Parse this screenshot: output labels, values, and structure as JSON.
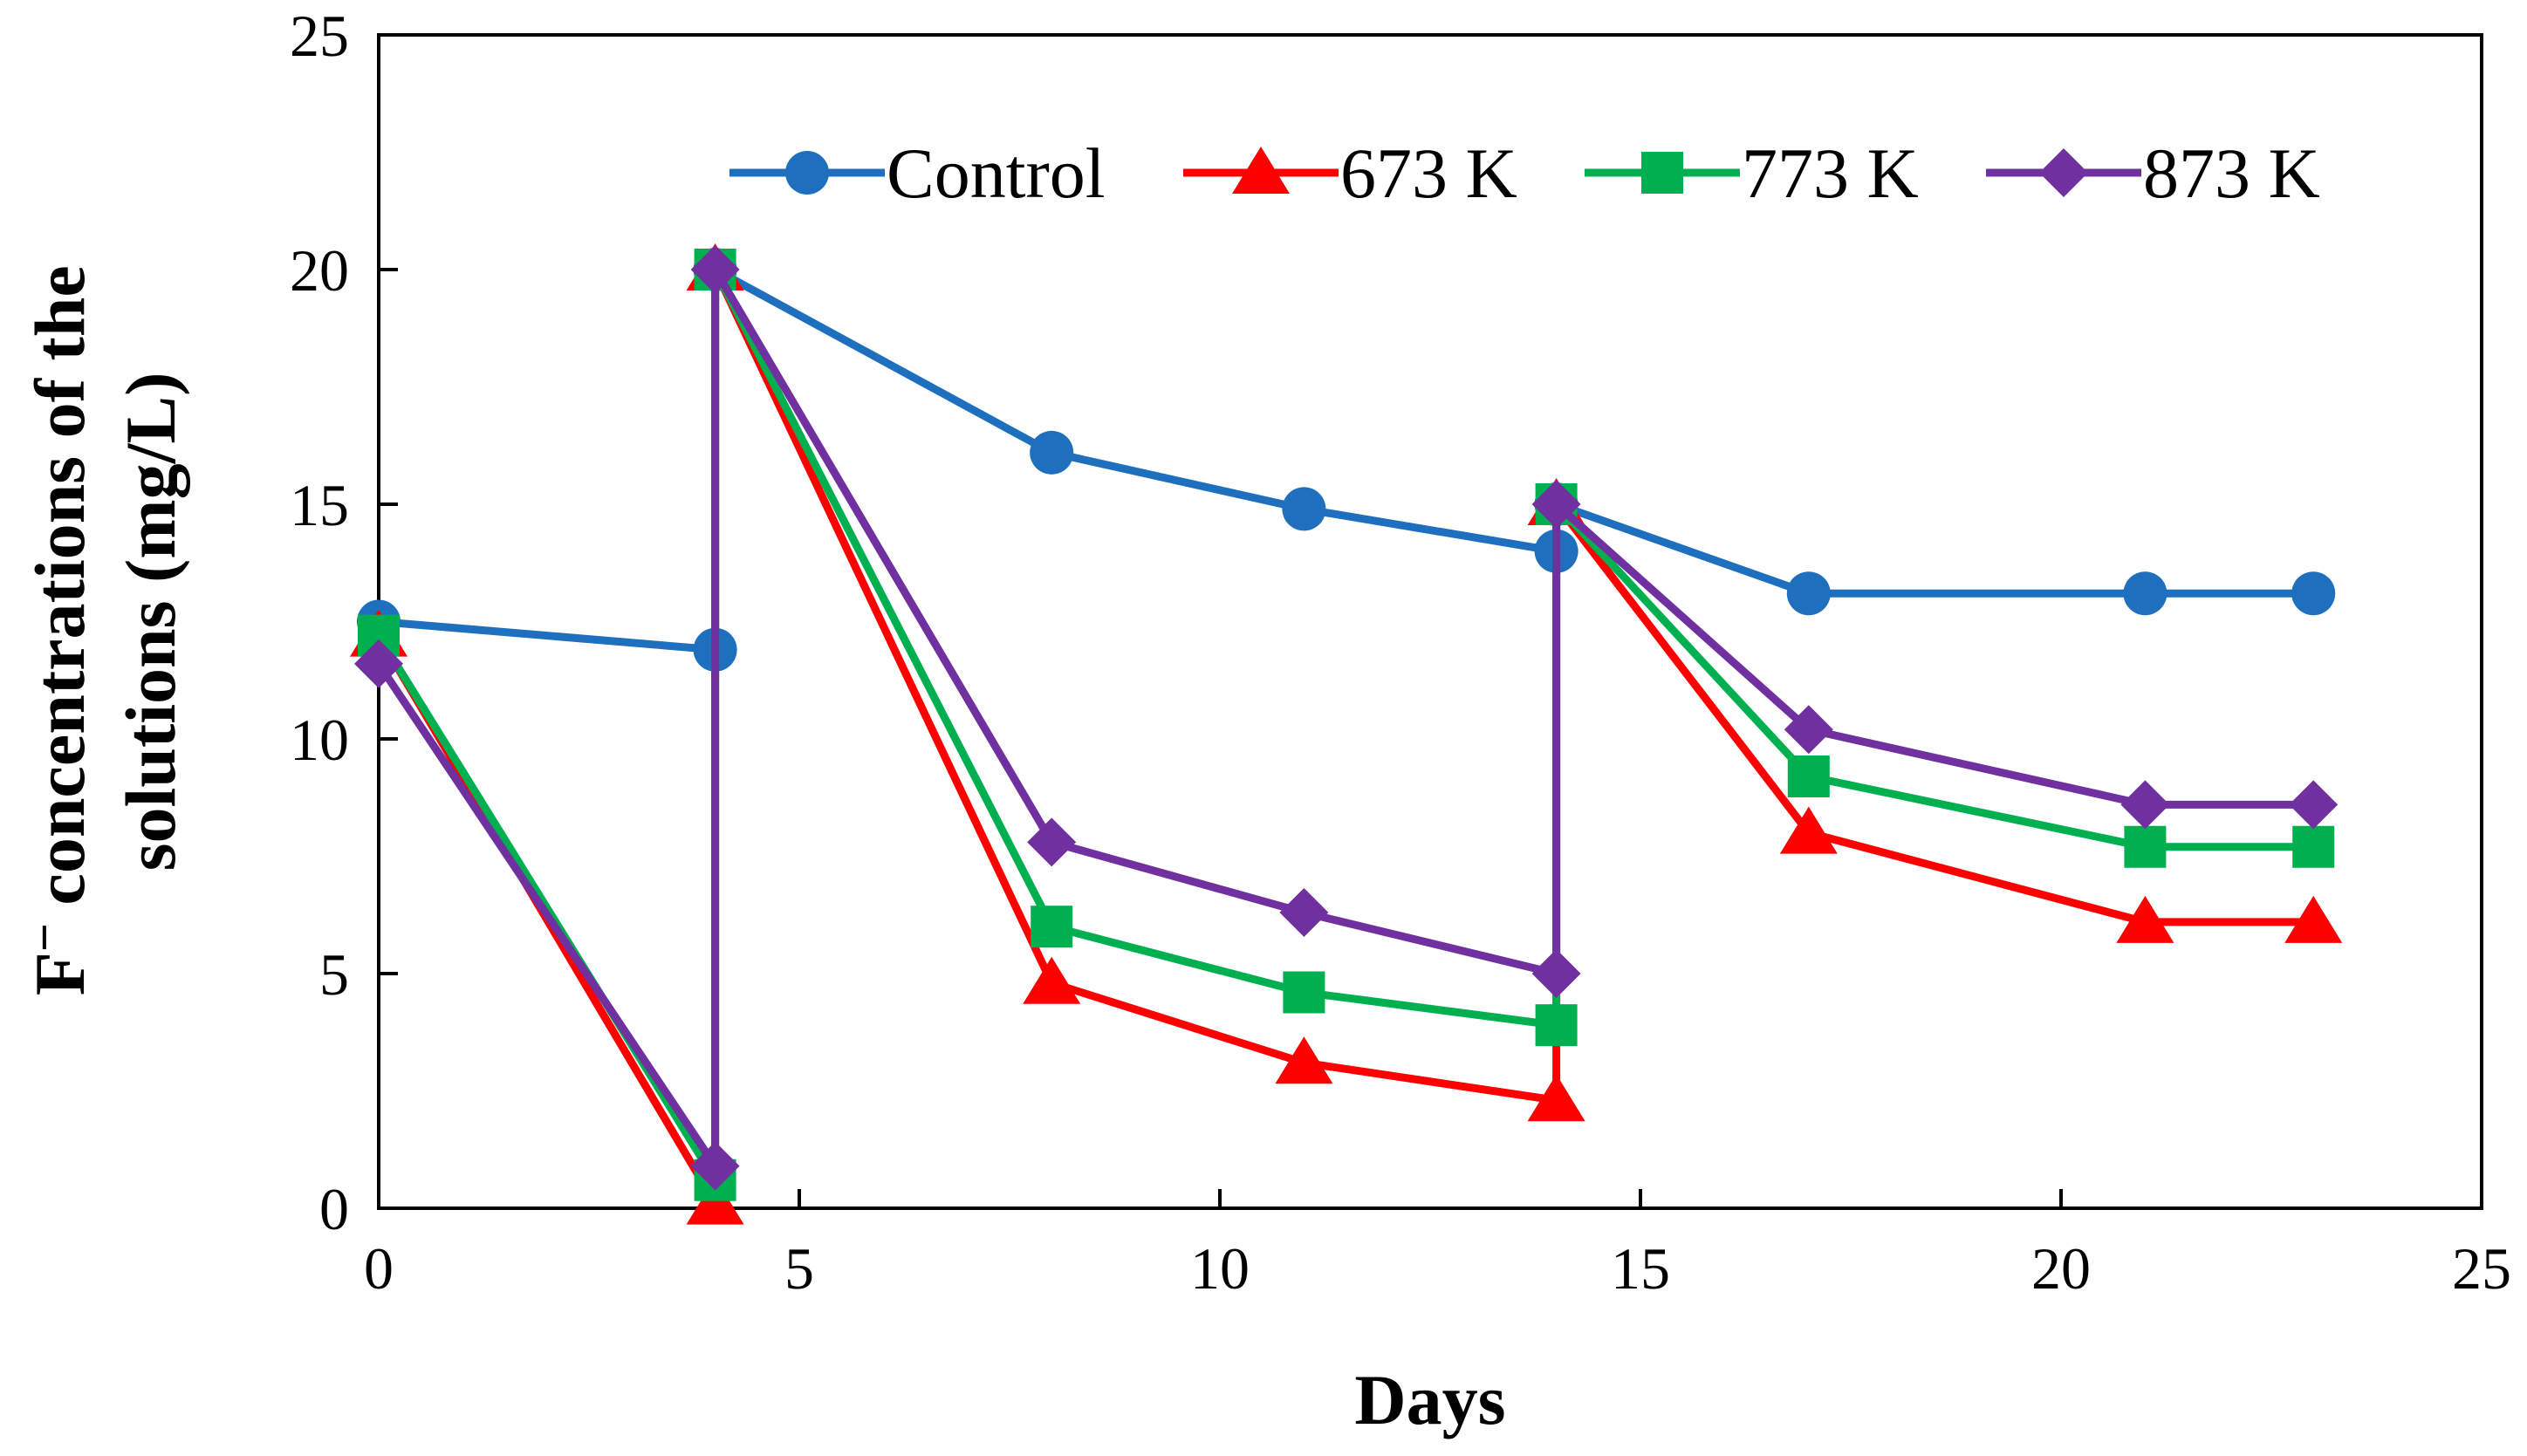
{
  "chart_data": {
    "type": "line",
    "title": "",
    "xlabel": "Days",
    "ylabel_prefix": "F",
    "ylabel_superscript": "−",
    "ylabel_line1_rest": " concentrations of the",
    "ylabel_line2": "solutions (mg/L)",
    "xlim": [
      0,
      25
    ],
    "ylim": [
      0,
      25
    ],
    "xticks": [
      0,
      5,
      10,
      15,
      20,
      25
    ],
    "yticks": [
      0,
      5,
      10,
      15,
      20,
      25
    ],
    "xtick_labels": [
      "0",
      "5",
      "10",
      "15",
      "20",
      "25"
    ],
    "ytick_labels": [
      "0",
      "5",
      "10",
      "15",
      "20",
      "25"
    ],
    "grid": false,
    "legend_position": "top-right",
    "series": [
      {
        "name": "Control",
        "color": "#1f6fbf",
        "marker": "circle",
        "x": [
          0,
          4,
          4,
          8,
          11,
          14,
          14,
          17,
          21,
          23
        ],
        "y": [
          12.5,
          11.9,
          20.0,
          16.1,
          14.9,
          14.0,
          15.0,
          13.1,
          13.1,
          13.1
        ]
      },
      {
        "name": "673 K",
        "color": "#ff0000",
        "marker": "triangle",
        "x": [
          0,
          4,
          4,
          8,
          11,
          14,
          14,
          17,
          21,
          23
        ],
        "y": [
          12.2,
          0.1,
          20.0,
          4.8,
          3.1,
          2.3,
          15.0,
          8.0,
          6.1,
          6.1
        ]
      },
      {
        "name": "773 K",
        "color": "#00b050",
        "marker": "square",
        "x": [
          0,
          4,
          4,
          8,
          11,
          14,
          14,
          17,
          21,
          23
        ],
        "y": [
          12.2,
          0.6,
          20.0,
          6.0,
          4.6,
          3.9,
          15.0,
          9.2,
          7.7,
          7.7
        ]
      },
      {
        "name": "873 K",
        "color": "#7030a0",
        "marker": "diamond",
        "x": [
          0,
          4,
          4,
          8,
          11,
          14,
          14,
          17,
          21,
          23
        ],
        "y": [
          11.6,
          0.9,
          20.0,
          7.8,
          6.3,
          5.0,
          15.0,
          10.2,
          8.6,
          8.6
        ]
      }
    ]
  }
}
